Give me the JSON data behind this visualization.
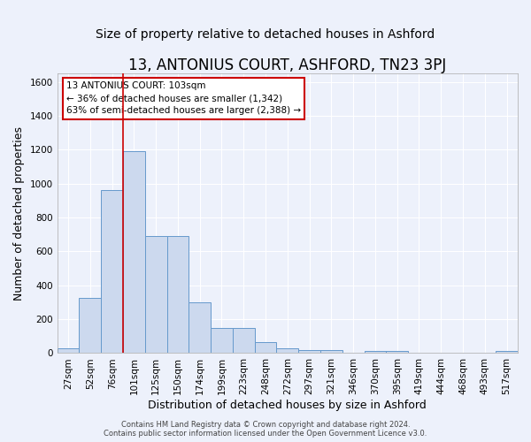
{
  "title": "13, ANTONIUS COURT, ASHFORD, TN23 3PJ",
  "subtitle": "Size of property relative to detached houses in Ashford",
  "xlabel": "Distribution of detached houses by size in Ashford",
  "ylabel": "Number of detached properties",
  "bar_labels": [
    "27sqm",
    "52sqm",
    "76sqm",
    "101sqm",
    "125sqm",
    "150sqm",
    "174sqm",
    "199sqm",
    "223sqm",
    "248sqm",
    "272sqm",
    "297sqm",
    "321sqm",
    "346sqm",
    "370sqm",
    "395sqm",
    "419sqm",
    "444sqm",
    "468sqm",
    "493sqm",
    "517sqm"
  ],
  "bar_values": [
    30,
    325,
    960,
    1190,
    690,
    690,
    300,
    150,
    150,
    65,
    30,
    20,
    20,
    0,
    15,
    15,
    0,
    0,
    0,
    0,
    15
  ],
  "bar_color": "#ccd9ee",
  "bar_edge_color": "#6699cc",
  "highlight_index": 3,
  "highlight_line_color": "#cc0000",
  "ylim": [
    0,
    1650
  ],
  "yticks": [
    0,
    200,
    400,
    600,
    800,
    1000,
    1200,
    1400,
    1600
  ],
  "annotation_text": "13 ANTONIUS COURT: 103sqm\n← 36% of detached houses are smaller (1,342)\n63% of semi-detached houses are larger (2,388) →",
  "annotation_box_color": "#ffffff",
  "annotation_box_edge_color": "#cc0000",
  "footer_text": "Contains HM Land Registry data © Crown copyright and database right 2024.\nContains public sector information licensed under the Open Government Licence v3.0.",
  "bg_color": "#edf1fb",
  "grid_color": "#ffffff",
  "title_fontsize": 12,
  "subtitle_fontsize": 10,
  "axis_label_fontsize": 9,
  "tick_fontsize": 7.5,
  "footer_fontsize": 6
}
